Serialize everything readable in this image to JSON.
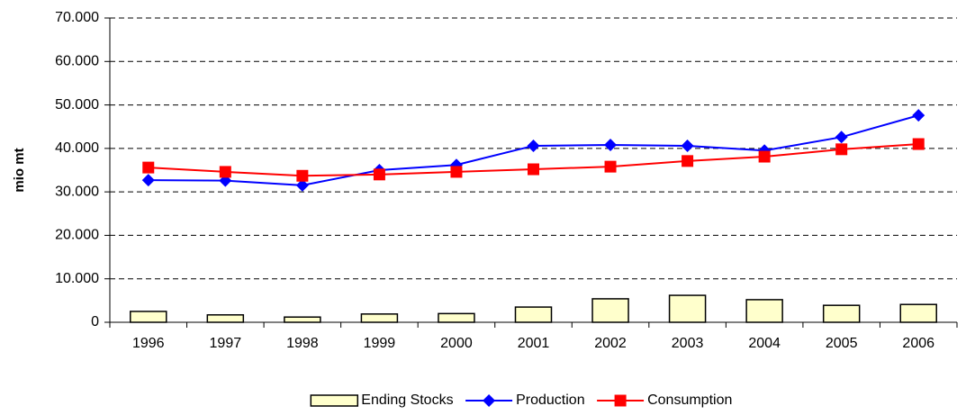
{
  "chart_data": {
    "type": "combo",
    "y_label": "mio mt",
    "categories": [
      "1996",
      "1997",
      "1998",
      "1999",
      "2000",
      "2001",
      "2002",
      "2003",
      "2004",
      "2005",
      "2006"
    ],
    "series": [
      {
        "name": "Ending Stocks",
        "type": "bar",
        "color": "#ffffcc",
        "values": [
          2500,
          1700,
          1200,
          1900,
          2000,
          3500,
          5400,
          6200,
          5200,
          3900,
          4100
        ]
      },
      {
        "name": "Production",
        "type": "line",
        "marker": "diamond",
        "color": "#0000ff",
        "values": [
          32700,
          32600,
          31500,
          35000,
          36200,
          40600,
          40800,
          40600,
          39500,
          42600,
          47600
        ]
      },
      {
        "name": "Consumption",
        "type": "line",
        "marker": "square",
        "color": "#ff0000",
        "values": [
          35600,
          34600,
          33700,
          34000,
          34600,
          35200,
          35800,
          37100,
          38100,
          39800,
          41000
        ]
      }
    ],
    "ylim": [
      0,
      70000
    ],
    "yticks": [
      0,
      {
        "value": 10000,
        "label": "10.000"
      },
      {
        "value": 20000,
        "label": "20.000"
      },
      {
        "value": 30000,
        "label": "30.000"
      },
      {
        "value": 40000,
        "label": "40.000"
      },
      {
        "value": 50000,
        "label": "50.000"
      },
      {
        "value": 60000,
        "label": "60.000"
      },
      {
        "value": 70000,
        "label": "70.000"
      }
    ],
    "grid": true,
    "legend": "bottom"
  }
}
